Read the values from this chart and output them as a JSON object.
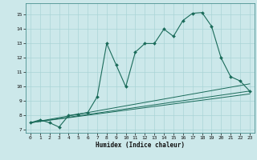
{
  "xlabel": "Humidex (Indice chaleur)",
  "xlim": [
    -0.5,
    23.5
  ],
  "ylim": [
    6.8,
    15.8
  ],
  "yticks": [
    7,
    8,
    9,
    10,
    11,
    12,
    13,
    14,
    15
  ],
  "xticks": [
    0,
    1,
    2,
    3,
    4,
    5,
    6,
    7,
    8,
    9,
    10,
    11,
    12,
    13,
    14,
    15,
    16,
    17,
    18,
    19,
    20,
    21,
    22,
    23
  ],
  "bg_color": "#cce8ea",
  "grid_color": "#aad4d6",
  "line_color": "#1a6b5a",
  "series": [
    [
      0,
      7.5
    ],
    [
      1,
      7.7
    ],
    [
      2,
      7.5
    ],
    [
      3,
      7.2
    ],
    [
      4,
      8.0
    ],
    [
      5,
      8.1
    ],
    [
      6,
      8.2
    ],
    [
      7,
      9.3
    ],
    [
      8,
      13.0
    ],
    [
      9,
      11.5
    ],
    [
      10,
      10.0
    ],
    [
      11,
      12.4
    ],
    [
      12,
      13.0
    ],
    [
      13,
      13.0
    ],
    [
      14,
      14.0
    ],
    [
      15,
      13.5
    ],
    [
      16,
      14.6
    ],
    [
      17,
      15.1
    ],
    [
      18,
      15.15
    ],
    [
      19,
      14.2
    ],
    [
      20,
      12.0
    ],
    [
      21,
      10.7
    ],
    [
      22,
      10.4
    ],
    [
      23,
      9.7
    ]
  ],
  "line2": [
    [
      0,
      7.5
    ],
    [
      23,
      9.5
    ]
  ],
  "line3": [
    [
      0,
      7.5
    ],
    [
      23,
      9.7
    ]
  ],
  "line4": [
    [
      0,
      7.5
    ],
    [
      23,
      10.2
    ]
  ]
}
